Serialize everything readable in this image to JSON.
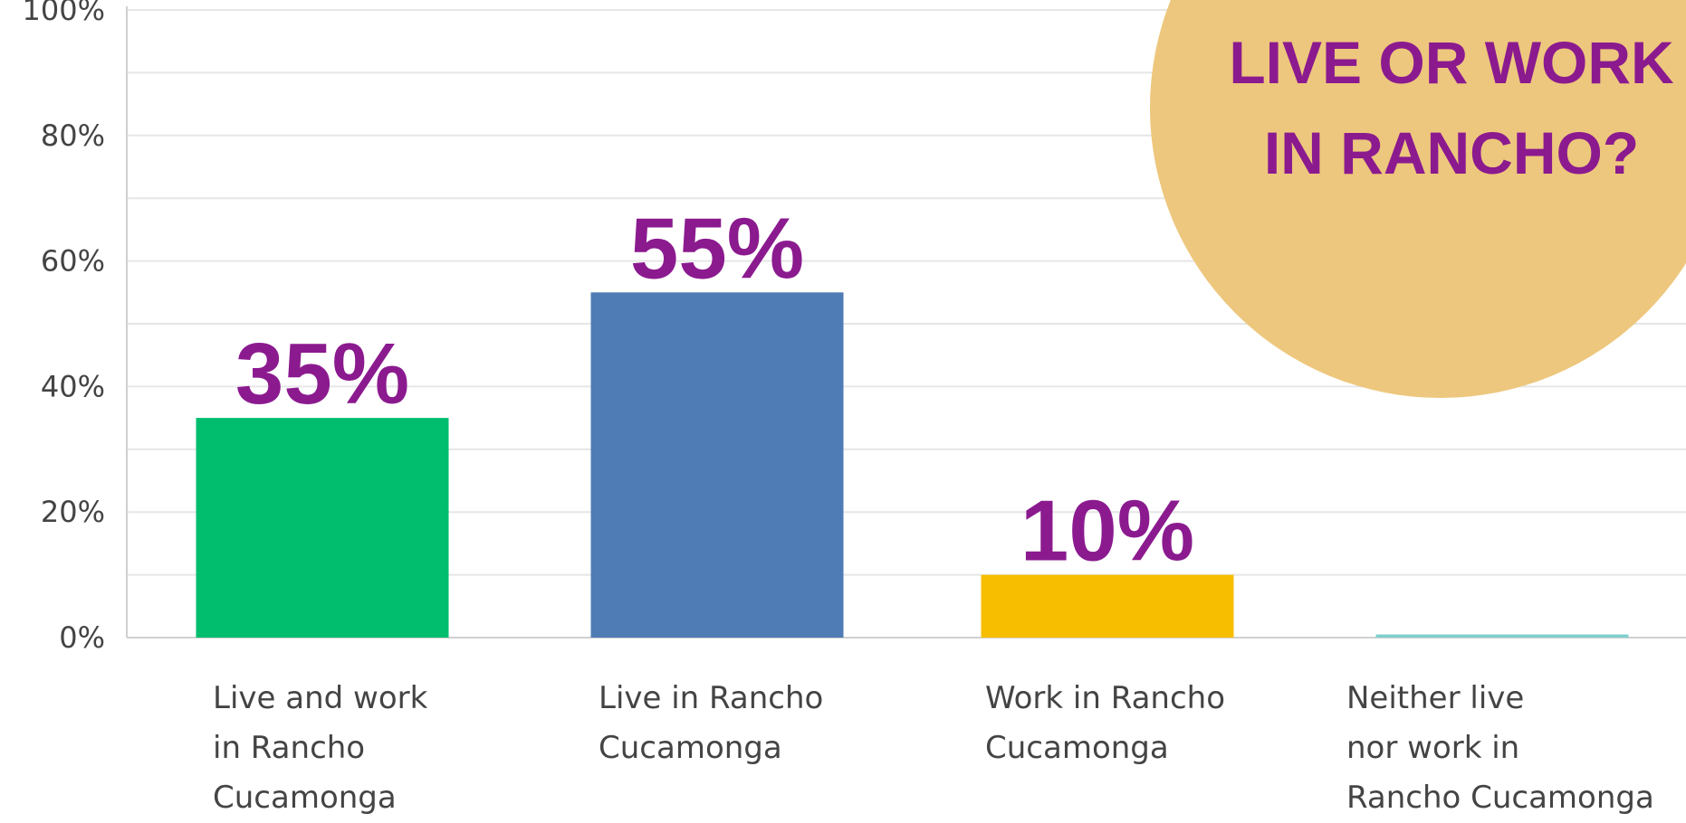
{
  "chart_data": {
    "type": "bar",
    "title": "LIVE OR WORK\nIN RANCHO?",
    "categories": [
      "Live and work\nin Rancho\nCucamonga",
      "Live in Rancho\nCucamonga",
      "Work in Rancho\nCucamonga",
      "Neither live\nnor work in\nRancho Cucamonga"
    ],
    "values": [
      35,
      55,
      10,
      0.5
    ],
    "value_labels": [
      "35%",
      "55%",
      "10%",
      null
    ],
    "colors": [
      "#00be6e",
      "#4f7cb4",
      "#f7be00",
      "#7fcfd0"
    ],
    "ylim": [
      0,
      100
    ],
    "yticks": [
      {
        "value": 0,
        "label": "0%"
      },
      {
        "value": 20,
        "label": "20%"
      },
      {
        "value": 40,
        "label": "40%"
      },
      {
        "value": 60,
        "label": "60%"
      },
      {
        "value": 80,
        "label": "80%"
      },
      {
        "value": 100,
        "label": "100%"
      }
    ],
    "grid_ticks": [
      10,
      20,
      30,
      40,
      50,
      60,
      70,
      80,
      90,
      100
    ],
    "grid": true
  }
}
